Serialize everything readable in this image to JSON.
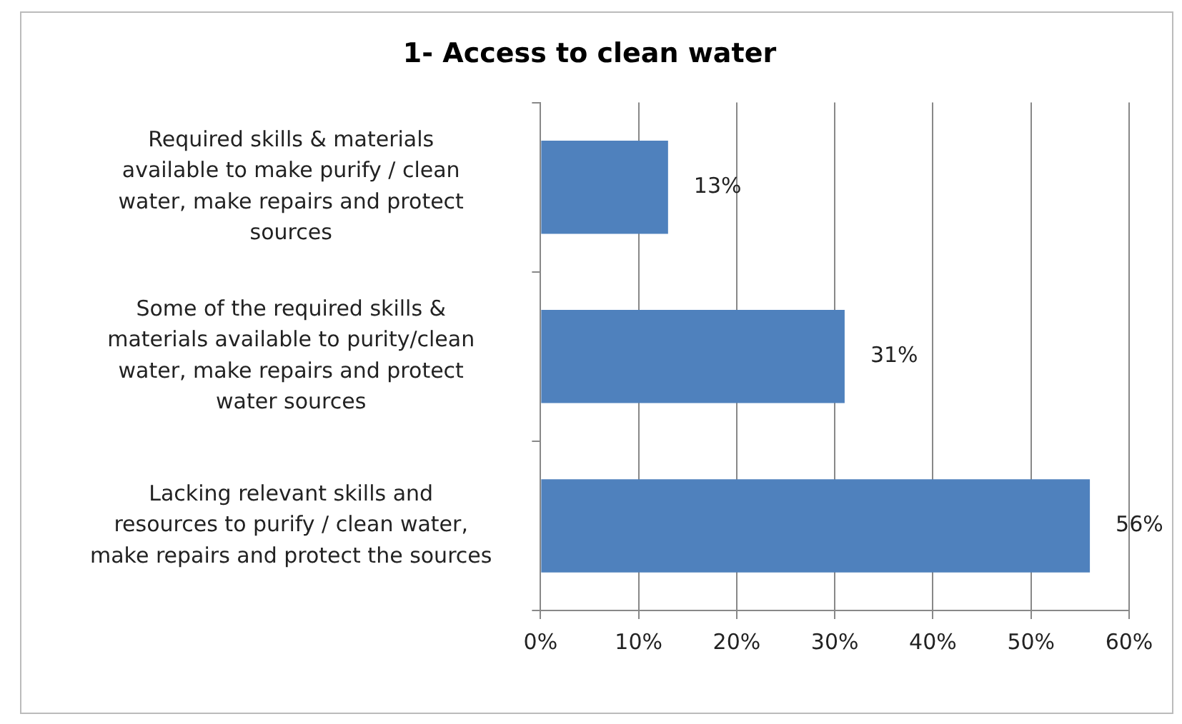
{
  "chart_data": {
    "type": "bar",
    "orientation": "horizontal",
    "title": "1- Access to clean water",
    "categories": [
      "Required skills & materials available to make purify / clean water, make repairs and protect sources",
      "Some of the required skills & materials available to purity/clean water, make repairs and protect water sources",
      "Lacking relevant skills and resources to purify / clean water, make repairs and protect the sources"
    ],
    "values": [
      13,
      31,
      56
    ],
    "color": "#4f81bd",
    "value_labels": [
      "13%",
      "31%",
      "56%"
    ],
    "xlim": [
      0,
      60
    ],
    "xticks": [
      {
        "value": 0,
        "label": "0%"
      },
      {
        "value": 10,
        "label": "10%"
      },
      {
        "value": 20,
        "label": "20%"
      },
      {
        "value": 30,
        "label": "30%"
      },
      {
        "value": 40,
        "label": "40%"
      },
      {
        "value": 50,
        "label": "50%"
      },
      {
        "value": 60,
        "label": "60%"
      }
    ],
    "grid": "x",
    "legend": false
  }
}
